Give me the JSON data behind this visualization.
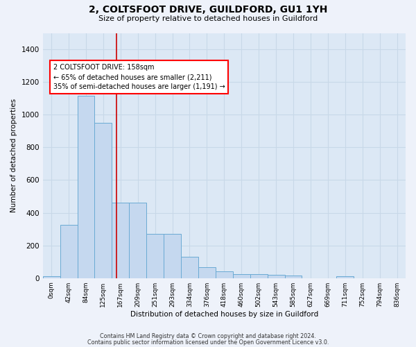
{
  "title_line1": "2, COLTSFOOT DRIVE, GUILDFORD, GU1 1YH",
  "title_line2": "Size of property relative to detached houses in Guildford",
  "xlabel": "Distribution of detached houses by size in Guildford",
  "ylabel": "Number of detached properties",
  "bar_labels": [
    "0sqm",
    "42sqm",
    "84sqm",
    "125sqm",
    "167sqm",
    "209sqm",
    "251sqm",
    "293sqm",
    "334sqm",
    "376sqm",
    "418sqm",
    "460sqm",
    "502sqm",
    "543sqm",
    "585sqm",
    "627sqm",
    "669sqm",
    "711sqm",
    "752sqm",
    "794sqm",
    "836sqm"
  ],
  "bar_values": [
    10,
    325,
    1115,
    950,
    460,
    460,
    270,
    270,
    130,
    65,
    40,
    25,
    25,
    20,
    15,
    0,
    0,
    10,
    0,
    0,
    0
  ],
  "bar_color": "#c5d8ef",
  "bar_edge_color": "#6aaad4",
  "annotation_line1": "2 COLTSFOOT DRIVE: 158sqm",
  "annotation_line2": "← 65% of detached houses are smaller (2,211)",
  "annotation_line3": "35% of semi-detached houses are larger (1,191) →",
  "vline_color": "#cc0000",
  "vline_index": 3.786,
  "ylim": [
    0,
    1500
  ],
  "yticks": [
    0,
    200,
    400,
    600,
    800,
    1000,
    1200,
    1400
  ],
  "footnote1": "Contains HM Land Registry data © Crown copyright and database right 2024.",
  "footnote2": "Contains public sector information licensed under the Open Government Licence v3.0.",
  "fig_bg_color": "#eef2fa",
  "plot_bg_color": "#dce8f5",
  "grid_color": "#c8d8e8"
}
